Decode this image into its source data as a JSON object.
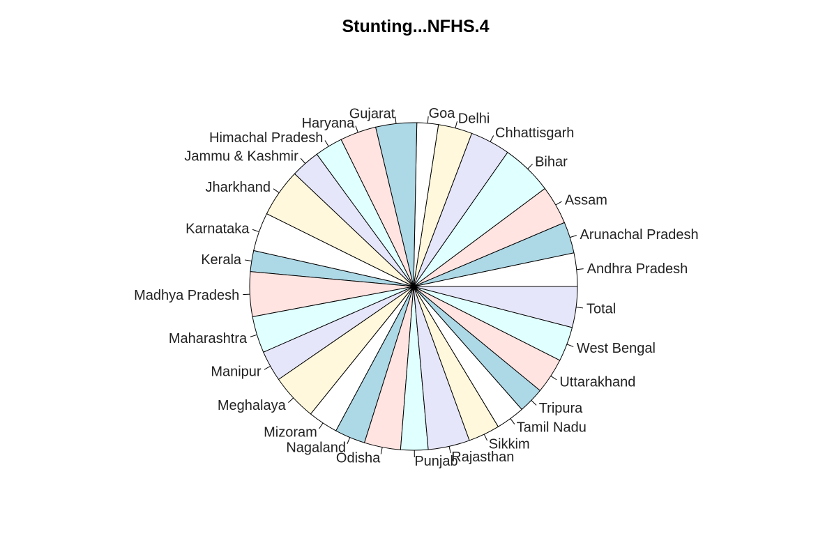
{
  "chart_data": {
    "type": "pie",
    "title": "Stunting...NFHS.4",
    "direction": "counterclockwise",
    "start_angle_deg": 0,
    "palette": [
      "#ffffff",
      "#add8e6",
      "#ffe4e1",
      "#e0ffff",
      "#e6e6fa",
      "#fff8dc"
    ],
    "slices": [
      {
        "label": "Andhra Pradesh",
        "value": 31.4
      },
      {
        "label": "Arunachal Pradesh",
        "value": 29.4
      },
      {
        "label": "Assam",
        "value": 36.4
      },
      {
        "label": "Bihar",
        "value": 48.3
      },
      {
        "label": "Chhattisgarh",
        "value": 37.6
      },
      {
        "label": "Delhi",
        "value": 31.9
      },
      {
        "label": "Goa",
        "value": 20.1
      },
      {
        "label": "Gujarat",
        "value": 38.5
      },
      {
        "label": "Haryana",
        "value": 34.0
      },
      {
        "label": "Himachal Pradesh",
        "value": 26.3
      },
      {
        "label": "Jammu & Kashmir",
        "value": 27.4
      },
      {
        "label": "Jharkhand",
        "value": 45.3
      },
      {
        "label": "Karnataka",
        "value": 36.2
      },
      {
        "label": "Kerala",
        "value": 19.7
      },
      {
        "label": "Madhya Pradesh",
        "value": 42.0
      },
      {
        "label": "Maharashtra",
        "value": 34.4
      },
      {
        "label": "Manipur",
        "value": 28.9
      },
      {
        "label": "Meghalaya",
        "value": 43.8
      },
      {
        "label": "Mizoram",
        "value": 28.1
      },
      {
        "label": "Nagaland",
        "value": 28.6
      },
      {
        "label": "Odisha",
        "value": 34.1
      },
      {
        "label": "Punjab",
        "value": 25.7
      },
      {
        "label": "Rajasthan",
        "value": 39.1
      },
      {
        "label": "Sikkim",
        "value": 29.6
      },
      {
        "label": "Tamil Nadu",
        "value": 27.1
      },
      {
        "label": "Tripura",
        "value": 24.3
      },
      {
        "label": "Uttarakhand",
        "value": 33.5
      },
      {
        "label": "West Bengal",
        "value": 32.5
      },
      {
        "label": "Total",
        "value": 38.4
      }
    ]
  }
}
